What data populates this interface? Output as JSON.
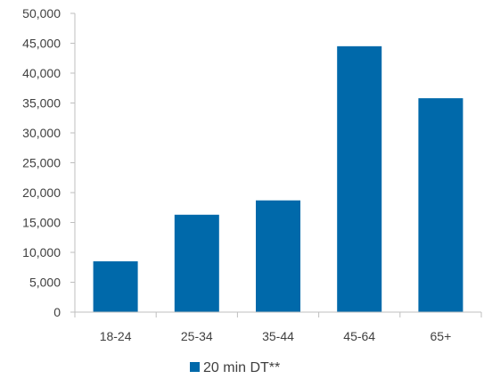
{
  "chart_data": {
    "type": "bar",
    "categories": [
      "18-24",
      "25-34",
      "35-44",
      "45-64",
      "65+"
    ],
    "series": [
      {
        "name": "20 min DT**",
        "values": [
          8500,
          16300,
          18700,
          44500,
          35800
        ]
      }
    ],
    "ylim": [
      0,
      50000
    ],
    "yticks": [
      "0",
      "5,000",
      "10,000",
      "15,000",
      "20,000",
      "25,000",
      "30,000",
      "35,000",
      "40,000",
      "45,000",
      "50,000"
    ],
    "grid": false,
    "legend_position": "bottom",
    "colors": {
      "bar": "#0069AA",
      "axis": "#BFBFBF"
    }
  }
}
